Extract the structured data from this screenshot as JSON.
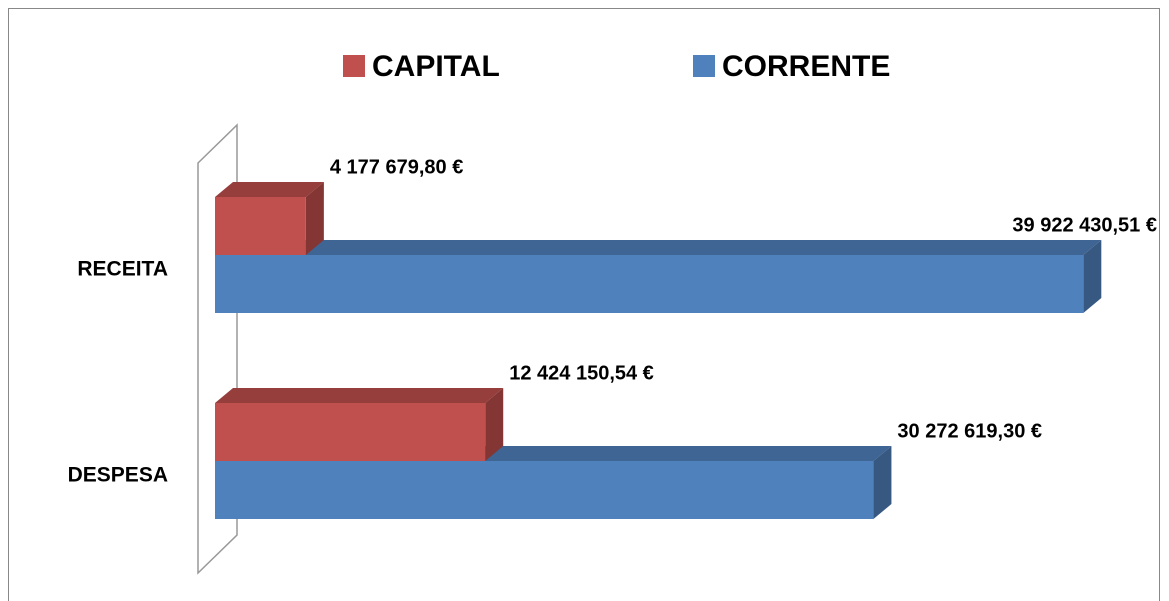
{
  "chart_data": {
    "type": "bar",
    "orientation": "horizontal",
    "categories": [
      "RECEITA",
      "DESPESA"
    ],
    "series": [
      {
        "name": "CAPITAL",
        "color": "#c0504d",
        "values": [
          4177679.8,
          12424150.54
        ],
        "value_labels": [
          "4 177 679,80 €",
          "12 424 150,54 €"
        ]
      },
      {
        "name": "CORRENTE",
        "color": "#4f81bd",
        "values": [
          39922430.51,
          30272619.3
        ],
        "value_labels": [
          "39 922 430,51 €",
          "30 272 619,30 €"
        ]
      }
    ],
    "xlim": [
      0,
      40000000
    ],
    "legend": "top"
  }
}
